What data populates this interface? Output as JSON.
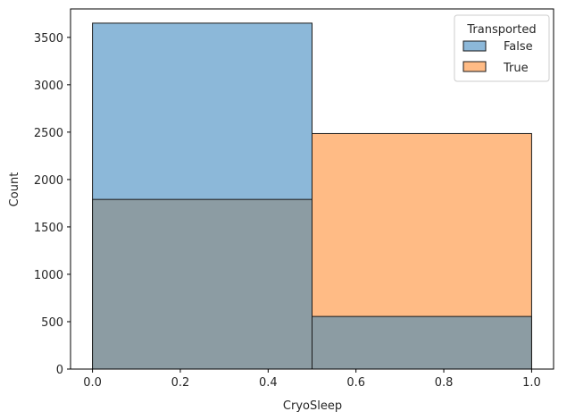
{
  "chart_data": {
    "type": "histogram",
    "title": "",
    "xlabel": "CryoSleep",
    "ylabel": "Count",
    "xlim": [
      -0.05,
      1.05
    ],
    "ylim": [
      0,
      3800
    ],
    "x_ticks": [
      "0.0",
      "0.2",
      "0.4",
      "0.6",
      "0.8",
      "1.0"
    ],
    "y_ticks": [
      "0",
      "500",
      "1000",
      "1500",
      "2000",
      "2500",
      "3000",
      "3500"
    ],
    "bins": [
      [
        0.0,
        0.5
      ],
      [
        0.5,
        1.0
      ]
    ],
    "series": [
      {
        "name": "False",
        "values": [
          3650,
          555
        ]
      },
      {
        "name": "True",
        "values": [
          1790,
          2485
        ]
      }
    ],
    "overlap_color": "#8c9ca3",
    "legend": {
      "title": "Transported",
      "position": "top-right",
      "items": [
        "False",
        "True"
      ]
    },
    "colors": {
      "False": "#8cb8d9",
      "True": "#ffbb85",
      "edge": "#1a1a1a"
    },
    "grid": false
  }
}
